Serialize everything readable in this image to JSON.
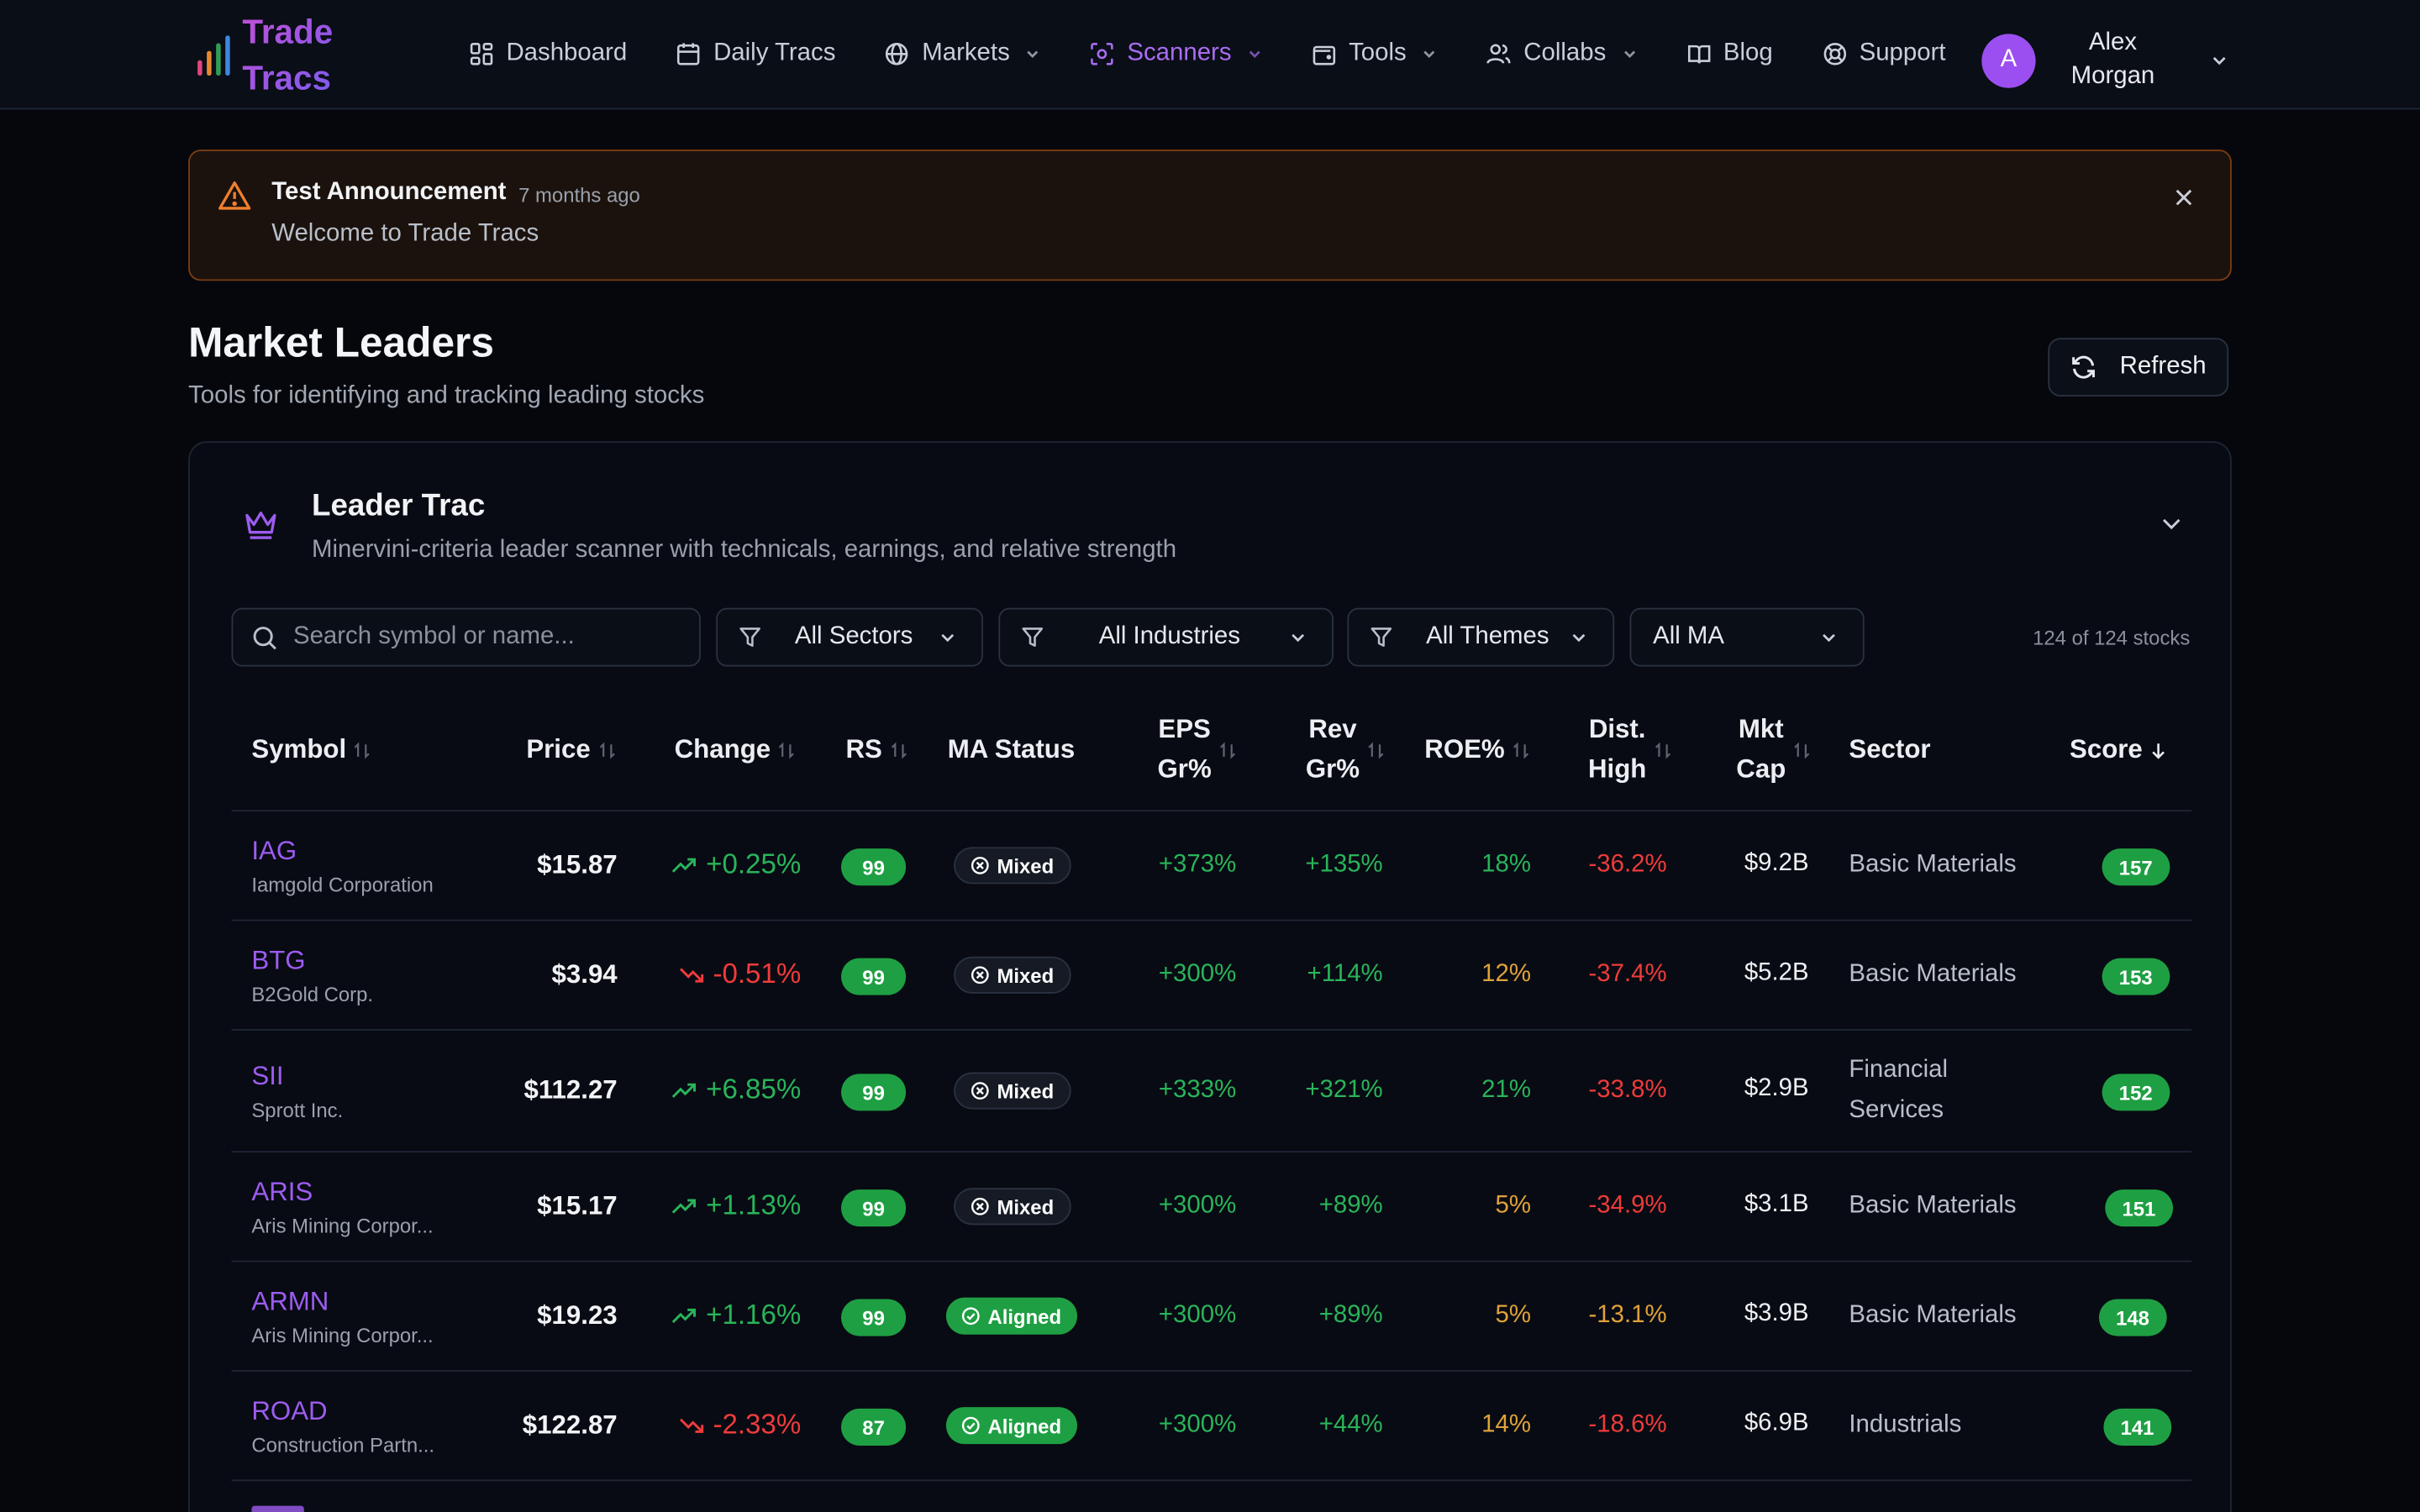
{
  "app": {
    "logo_line1": "Trade",
    "logo_line2": "Tracs"
  },
  "nav": {
    "items": [
      {
        "label": "Dashboard",
        "icon": "dashboard-icon",
        "active": false,
        "dropdown": false
      },
      {
        "label": "Daily Tracs",
        "icon": "calendar-icon",
        "active": false,
        "dropdown": false
      },
      {
        "label": "Markets",
        "icon": "globe-icon",
        "active": false,
        "dropdown": true
      },
      {
        "label": "Scanners",
        "icon": "scan-icon",
        "active": true,
        "dropdown": true
      },
      {
        "label": "Tools",
        "icon": "wallet-icon",
        "active": false,
        "dropdown": true
      },
      {
        "label": "Collabs",
        "icon": "users-icon",
        "active": false,
        "dropdown": true
      },
      {
        "label": "Blog",
        "icon": "book-icon",
        "active": false,
        "dropdown": false
      },
      {
        "label": "Support",
        "icon": "lifebuoy-icon",
        "active": false,
        "dropdown": false
      }
    ],
    "user": {
      "initial": "A",
      "name": "Alex Morgan"
    }
  },
  "announcement": {
    "title": "Test Announcement",
    "time": "7 months ago",
    "body": "Welcome to Trade Tracs"
  },
  "page": {
    "title": "Market Leaders",
    "subtitle": "Tools for identifying and tracking leading stocks",
    "refresh_label": "Refresh"
  },
  "scanner": {
    "title": "Leader Trac",
    "subtitle": "Minervini-criteria leader scanner with technicals, earnings, and relative strength",
    "search_placeholder": "Search symbol or name...",
    "filters": {
      "sectors": "All Sectors",
      "industries": "All Industries",
      "themes": "All Themes",
      "ma": "All MA"
    },
    "count": "124 of 124 stocks"
  },
  "table": {
    "headers": {
      "symbol": "Symbol",
      "price": "Price",
      "change": "Change",
      "rs": "RS",
      "ma": "MA Status",
      "eps1": "EPS",
      "eps2": "Gr%",
      "rev1": "Rev",
      "rev2": "Gr%",
      "roe": "ROE%",
      "dist1": "Dist.",
      "dist2": "High",
      "cap1": "Mkt",
      "cap2": "Cap",
      "sector": "Sector",
      "score": "Score"
    },
    "rows": [
      {
        "symbol": "IAG",
        "name": "Iamgold Corporation",
        "price": "$15.87",
        "change": "+0.25%",
        "dir": "up",
        "rs": "99",
        "ma": "Mixed",
        "eps": "+373%",
        "rev": "+135%",
        "roe": "18%",
        "roe_color": "up",
        "dist": "-36.2%",
        "dist_color": "down",
        "cap": "$9.2B",
        "sector": "Basic Materials",
        "score": "157"
      },
      {
        "symbol": "BTG",
        "name": "B2Gold Corp.",
        "price": "$3.94",
        "change": "-0.51%",
        "dir": "down",
        "rs": "99",
        "ma": "Mixed",
        "eps": "+300%",
        "rev": "+114%",
        "roe": "12%",
        "roe_color": "amber",
        "dist": "-37.4%",
        "dist_color": "down",
        "cap": "$5.2B",
        "sector": "Basic Materials",
        "score": "153"
      },
      {
        "symbol": "SII",
        "name": "Sprott Inc.",
        "price": "$112.27",
        "change": "+6.85%",
        "dir": "up",
        "rs": "99",
        "ma": "Mixed",
        "eps": "+333%",
        "rev": "+321%",
        "roe": "21%",
        "roe_color": "up",
        "dist": "-33.8%",
        "dist_color": "down",
        "cap": "$2.9B",
        "sector": "Financial Services",
        "score": "152"
      },
      {
        "symbol": "ARIS",
        "name": "Aris Mining Corpor...",
        "price": "$15.17",
        "change": "+1.13%",
        "dir": "up",
        "rs": "99",
        "ma": "Mixed",
        "eps": "+300%",
        "rev": "+89%",
        "roe": "5%",
        "roe_color": "amber",
        "dist": "-34.9%",
        "dist_color": "down",
        "cap": "$3.1B",
        "sector": "Basic Materials",
        "score": "151"
      },
      {
        "symbol": "ARMN",
        "name": "Aris Mining Corpor...",
        "price": "$19.23",
        "change": "+1.16%",
        "dir": "up",
        "rs": "99",
        "ma": "Aligned",
        "eps": "+300%",
        "rev": "+89%",
        "roe": "5%",
        "roe_color": "amber",
        "dist": "-13.1%",
        "dist_color": "amber",
        "cap": "$3.9B",
        "sector": "Basic Materials",
        "score": "148"
      },
      {
        "symbol": "ROAD",
        "name": "Construction Partn...",
        "price": "$122.87",
        "change": "-2.33%",
        "dir": "down",
        "rs": "87",
        "ma": "Aligned",
        "eps": "+300%",
        "rev": "+44%",
        "roe": "14%",
        "roe_color": "amber",
        "dist": "-18.6%",
        "dist_color": "down",
        "cap": "$6.9B",
        "sector": "Industrials",
        "score": "141"
      }
    ]
  },
  "colors": {
    "accent": "#9d5cf0",
    "positive": "#29b45a",
    "negative": "#ef3b3b",
    "warning": "#e0a23a",
    "badge": "#1f9f43"
  }
}
